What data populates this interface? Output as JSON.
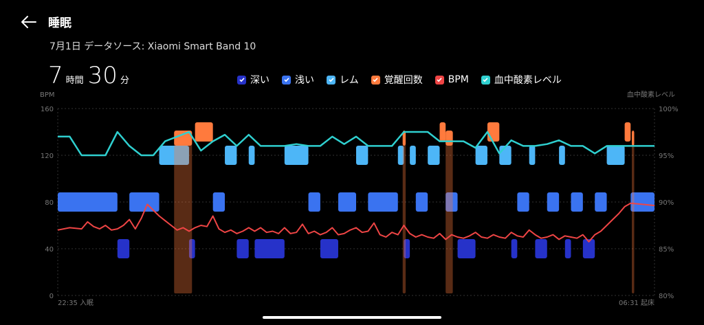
{
  "header": {
    "title": "睡眠",
    "subtitle": "7月1日 データソース: Xiaomi Smart Band 10"
  },
  "summary": {
    "hours": "7",
    "hours_unit": "時間",
    "minutes": "30",
    "minutes_unit": "分"
  },
  "legend": [
    {
      "label": "深い",
      "color": "#2632c9"
    },
    {
      "label": "浅い",
      "color": "#3a73f0"
    },
    {
      "label": "レム",
      "color": "#4db6f7"
    },
    {
      "label": "覚醒回数",
      "color": "#ff7a3d"
    },
    {
      "label": "BPM",
      "color": "#ef4545"
    },
    {
      "label": "血中酸素レベル",
      "color": "#2fd0d0"
    }
  ],
  "chart_data": {
    "type": "area",
    "left_axis": {
      "label": "BPM",
      "ticks": [
        "160",
        "120",
        "80",
        "40",
        "0"
      ],
      "ylim": [
        0,
        160
      ]
    },
    "right_axis": {
      "label": "血中酸素レベル",
      "ticks": [
        "100%",
        "95%",
        "90%",
        "85%",
        "80%"
      ],
      "ylim": [
        80,
        100
      ]
    },
    "x_start": "22:35 入眠",
    "x_end": "06:31 起床",
    "stage_levels": {
      "awake": 140,
      "rem": 120,
      "light": 80,
      "deep": 40
    },
    "sleep_stages": [
      {
        "stage": "light",
        "start": 0,
        "end": 10
      },
      {
        "stage": "deep",
        "start": 10,
        "end": 12
      },
      {
        "stage": "light",
        "start": 12,
        "end": 17
      },
      {
        "stage": "rem",
        "start": 17,
        "end": 22
      },
      {
        "stage": "deep",
        "start": 22,
        "end": 23
      },
      {
        "stage": "awake",
        "start": 23,
        "end": 26
      },
      {
        "stage": "light",
        "start": 26,
        "end": 28
      },
      {
        "stage": "rem",
        "start": 28,
        "end": 30
      },
      {
        "stage": "deep",
        "start": 30,
        "end": 32
      },
      {
        "stage": "rem",
        "start": 32,
        "end": 33
      },
      {
        "stage": "deep",
        "start": 33,
        "end": 38
      },
      {
        "stage": "rem",
        "start": 38,
        "end": 42
      },
      {
        "stage": "light",
        "start": 42,
        "end": 44
      },
      {
        "stage": "deep",
        "start": 44,
        "end": 47
      },
      {
        "stage": "light",
        "start": 47,
        "end": 50
      },
      {
        "stage": "rem",
        "start": 50,
        "end": 52
      },
      {
        "stage": "light",
        "start": 52,
        "end": 57
      },
      {
        "stage": "rem",
        "start": 57,
        "end": 58
      },
      {
        "stage": "deep",
        "start": 58,
        "end": 59
      },
      {
        "stage": "rem",
        "start": 59,
        "end": 60
      },
      {
        "stage": "light",
        "start": 60,
        "end": 62
      },
      {
        "stage": "rem",
        "start": 62,
        "end": 64
      },
      {
        "stage": "awake",
        "start": 64,
        "end": 65
      },
      {
        "stage": "light",
        "start": 65,
        "end": 67
      },
      {
        "stage": "deep",
        "start": 67,
        "end": 70
      },
      {
        "stage": "rem",
        "start": 70,
        "end": 72
      },
      {
        "stage": "awake",
        "start": 72,
        "end": 74
      },
      {
        "stage": "rem",
        "start": 74,
        "end": 76
      },
      {
        "stage": "deep",
        "start": 76,
        "end": 77
      },
      {
        "stage": "light",
        "start": 77,
        "end": 79
      },
      {
        "stage": "rem",
        "start": 79,
        "end": 80
      },
      {
        "stage": "deep",
        "start": 80,
        "end": 82
      },
      {
        "stage": "light",
        "start": 82,
        "end": 84
      },
      {
        "stage": "rem",
        "start": 84,
        "end": 85
      },
      {
        "stage": "deep",
        "start": 85,
        "end": 86
      },
      {
        "stage": "light",
        "start": 86,
        "end": 88
      },
      {
        "stage": "deep",
        "start": 88,
        "end": 90
      },
      {
        "stage": "light",
        "start": 90,
        "end": 92
      },
      {
        "stage": "rem",
        "start": 92,
        "end": 95
      },
      {
        "stage": "awake",
        "start": 95,
        "end": 96
      },
      {
        "stage": "light",
        "start": 96,
        "end": 100
      }
    ],
    "bpm_series": [
      [
        0,
        56
      ],
      [
        2,
        58
      ],
      [
        4,
        57
      ],
      [
        5,
        63
      ],
      [
        6,
        59
      ],
      [
        7,
        57
      ],
      [
        8,
        60
      ],
      [
        9,
        56
      ],
      [
        10,
        57
      ],
      [
        11,
        60
      ],
      [
        12,
        65
      ],
      [
        13,
        57
      ],
      [
        14,
        66
      ],
      [
        15,
        78
      ],
      [
        16,
        73
      ],
      [
        17,
        68
      ],
      [
        18,
        64
      ],
      [
        19,
        60
      ],
      [
        20,
        56
      ],
      [
        21,
        58
      ],
      [
        22,
        55
      ],
      [
        23,
        58
      ],
      [
        24,
        60
      ],
      [
        25,
        59
      ],
      [
        26,
        68
      ],
      [
        27,
        57
      ],
      [
        28,
        54
      ],
      [
        29,
        56
      ],
      [
        30,
        53
      ],
      [
        31,
        55
      ],
      [
        32,
        58
      ],
      [
        33,
        55
      ],
      [
        34,
        58
      ],
      [
        35,
        54
      ],
      [
        36,
        55
      ],
      [
        37,
        53
      ],
      [
        38,
        58
      ],
      [
        39,
        53
      ],
      [
        40,
        54
      ],
      [
        41,
        61
      ],
      [
        42,
        53
      ],
      [
        43,
        55
      ],
      [
        44,
        52
      ],
      [
        45,
        54
      ],
      [
        46,
        58
      ],
      [
        47,
        52
      ],
      [
        48,
        53
      ],
      [
        49,
        56
      ],
      [
        50,
        58
      ],
      [
        51,
        54
      ],
      [
        52,
        55
      ],
      [
        53,
        62
      ],
      [
        54,
        52
      ],
      [
        55,
        50
      ],
      [
        56,
        54
      ],
      [
        57,
        52
      ],
      [
        58,
        60
      ],
      [
        59,
        53
      ],
      [
        60,
        50
      ],
      [
        61,
        52
      ],
      [
        62,
        50
      ],
      [
        63,
        49
      ],
      [
        64,
        53
      ],
      [
        65,
        48
      ],
      [
        66,
        52
      ],
      [
        67,
        50
      ],
      [
        68,
        49
      ],
      [
        69,
        51
      ],
      [
        70,
        54
      ],
      [
        71,
        50
      ],
      [
        72,
        49
      ],
      [
        73,
        52
      ],
      [
        74,
        50
      ],
      [
        75,
        49
      ],
      [
        76,
        54
      ],
      [
        77,
        51
      ],
      [
        78,
        50
      ],
      [
        79,
        56
      ],
      [
        80,
        52
      ],
      [
        81,
        49
      ],
      [
        82,
        50
      ],
      [
        83,
        52
      ],
      [
        84,
        48
      ],
      [
        85,
        51
      ],
      [
        86,
        50
      ],
      [
        87,
        49
      ],
      [
        88,
        52
      ],
      [
        89,
        46
      ],
      [
        90,
        52
      ],
      [
        91,
        55
      ],
      [
        92,
        60
      ],
      [
        93,
        65
      ],
      [
        94,
        70
      ],
      [
        95,
        76
      ],
      [
        96,
        79
      ],
      [
        98,
        78
      ],
      [
        100,
        77
      ]
    ],
    "spo2_series": [
      [
        0,
        97
      ],
      [
        2,
        97
      ],
      [
        4,
        95
      ],
      [
        6,
        95
      ],
      [
        8,
        95
      ],
      [
        10,
        97.5
      ],
      [
        12,
        96
      ],
      [
        14,
        95
      ],
      [
        16,
        95
      ],
      [
        18,
        96.5
      ],
      [
        20,
        97
      ],
      [
        22,
        97.5
      ],
      [
        24,
        95.5
      ],
      [
        26,
        96.5
      ],
      [
        28,
        97.2
      ],
      [
        30,
        96
      ],
      [
        32,
        97.2
      ],
      [
        34,
        96
      ],
      [
        36,
        96
      ],
      [
        38,
        96
      ],
      [
        40,
        96.2
      ],
      [
        42,
        96
      ],
      [
        44,
        96
      ],
      [
        46,
        97
      ],
      [
        48,
        96.2
      ],
      [
        50,
        97
      ],
      [
        52,
        96
      ],
      [
        54,
        96
      ],
      [
        56,
        96
      ],
      [
        58,
        97.5
      ],
      [
        60,
        97.5
      ],
      [
        62,
        97.5
      ],
      [
        64,
        96.5
      ],
      [
        66,
        96.5
      ],
      [
        68,
        96.5
      ],
      [
        70,
        95.8
      ],
      [
        72,
        97.5
      ],
      [
        74,
        95.2
      ],
      [
        76,
        96.6
      ],
      [
        78,
        96
      ],
      [
        80,
        96
      ],
      [
        82,
        96.2
      ],
      [
        84,
        96.6
      ],
      [
        86,
        96
      ],
      [
        88,
        96
      ],
      [
        90,
        95.2
      ],
      [
        92,
        96
      ],
      [
        94,
        96
      ],
      [
        96,
        96
      ],
      [
        98,
        96
      ],
      [
        100,
        96
      ]
    ],
    "awake_markers": [
      {
        "start": 19.5,
        "end": 22.5,
        "level": 140
      },
      {
        "start": 57.8,
        "end": 58.3,
        "level": 140
      },
      {
        "start": 65.0,
        "end": 66.2,
        "level": 140
      },
      {
        "start": 96.2,
        "end": 96.6,
        "level": 140
      }
    ]
  }
}
